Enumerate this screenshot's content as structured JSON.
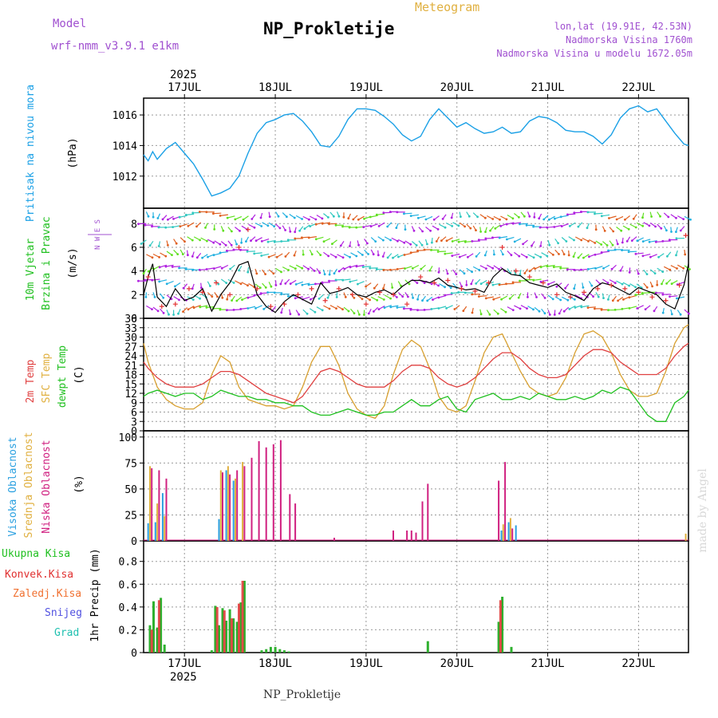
{
  "header": {
    "model_label": "Model",
    "model_name": "wrf-nmm_v3.9.1 e1km",
    "meteogram_label": "Meteogram",
    "station_title": "NP_Prokletije",
    "coords": "lon,lat (19.91E, 42.53N)",
    "altitude": "Nadmorska Visina 1760m",
    "model_altitude": "Nadmorska Visina u modelu 1672.05m",
    "year": "2025",
    "footer_station": "NP_Prokletije",
    "credit": "made by Angel"
  },
  "axis": {
    "days": [
      "17JUL",
      "18JUL",
      "19JUL",
      "20JUL",
      "21JUL",
      "22JUL"
    ],
    "x_range_days": [
      16.55,
      22.55
    ]
  },
  "colors": {
    "pressure": "#1aa0e6",
    "wind_speed": "#000000",
    "wind_gust_marker": "#e23030",
    "temp2m": "#e04040",
    "sfc": "#d8a030",
    "dewpt": "#20c020",
    "high_cloud": "#2aa0e0",
    "mid_cloud": "#e0b040",
    "low_cloud": "#d02080",
    "total_precip": "#2fb02f",
    "conv_precip": "#e03030",
    "ice_precip": "#f07030",
    "snow": "#5050e0",
    "hail": "#20c0b0",
    "model_text": "#a050d0",
    "grid": "#999999"
  },
  "chart_data": [
    {
      "type": "line",
      "id": "pressure",
      "ylabel": "Pritisak na nivou mora",
      "unit": "(hPa)",
      "yticks": [
        1012,
        1014,
        1016
      ],
      "ylim": [
        1009.9,
        1017.1
      ],
      "series": [
        {
          "x": [
            16.55,
            16.6,
            16.65,
            16.7,
            16.8,
            16.9,
            17.0,
            17.1,
            17.2,
            17.3,
            17.4,
            17.5,
            17.6,
            17.7,
            17.8,
            17.9,
            18.0,
            18.1,
            18.2,
            18.3,
            18.4,
            18.5,
            18.6,
            18.7,
            18.8,
            18.9,
            19.0,
            19.1,
            19.2,
            19.3,
            19.4,
            19.5,
            19.6,
            19.7,
            19.8,
            19.9,
            20.0,
            20.1,
            20.2,
            20.3,
            20.4,
            20.5,
            20.6,
            20.7,
            20.8,
            20.9,
            21.0,
            21.1,
            21.2,
            21.3,
            21.4,
            21.5,
            21.6,
            21.7,
            21.8,
            21.9,
            22.0,
            22.1,
            22.2,
            22.3,
            22.4,
            22.5,
            22.55
          ],
          "values": [
            1013.4,
            1013.0,
            1013.6,
            1013.1,
            1013.8,
            1014.2,
            1013.5,
            1012.8,
            1011.8,
            1010.7,
            1010.9,
            1011.2,
            1012.0,
            1013.5,
            1014.8,
            1015.5,
            1015.7,
            1016.0,
            1016.1,
            1015.6,
            1014.9,
            1014.0,
            1013.9,
            1014.6,
            1015.7,
            1016.4,
            1016.4,
            1016.3,
            1015.9,
            1015.4,
            1014.7,
            1014.3,
            1014.6,
            1015.7,
            1016.4,
            1015.8,
            1015.2,
            1015.5,
            1015.1,
            1014.8,
            1014.9,
            1015.2,
            1014.8,
            1014.9,
            1015.6,
            1015.9,
            1015.8,
            1015.5,
            1015.0,
            1014.9,
            1014.9,
            1014.6,
            1014.1,
            1014.7,
            1015.8,
            1016.4,
            1016.6,
            1016.2,
            1016.4,
            1015.6,
            1014.8,
            1014.1,
            1014.0
          ]
        }
      ]
    },
    {
      "type": "line",
      "id": "wind",
      "ylabel_1": "10m Vjetar",
      "ylabel_2": "Brzina i Pravac",
      "unit": "(m/s)",
      "compass": "N W E S",
      "yticks": [
        0,
        2,
        4,
        6,
        8
      ],
      "ylim": [
        0,
        9.3
      ],
      "series": [
        {
          "name": "speed",
          "x": [
            16.55,
            16.6,
            16.65,
            16.7,
            16.8,
            16.9,
            17.0,
            17.1,
            17.2,
            17.3,
            17.4,
            17.5,
            17.6,
            17.7,
            17.8,
            17.9,
            18.0,
            18.1,
            18.2,
            18.3,
            18.4,
            18.5,
            18.6,
            18.7,
            18.8,
            18.9,
            19.0,
            19.1,
            19.2,
            19.3,
            19.4,
            19.5,
            19.6,
            19.7,
            19.8,
            19.9,
            20.0,
            20.1,
            20.2,
            20.3,
            20.4,
            20.5,
            20.6,
            20.7,
            20.8,
            20.9,
            21.0,
            21.1,
            21.2,
            21.3,
            21.4,
            21.5,
            21.6,
            21.7,
            21.8,
            21.9,
            22.0,
            22.1,
            22.2,
            22.3,
            22.4,
            22.5,
            22.55
          ],
          "values": [
            2.0,
            3.5,
            4.6,
            1.8,
            1.0,
            2.5,
            1.5,
            1.8,
            2.5,
            0.6,
            2.0,
            3.0,
            4.5,
            4.8,
            2.0,
            1.0,
            0.5,
            1.4,
            2.0,
            1.6,
            1.2,
            3.0,
            2.1,
            2.3,
            2.6,
            2.0,
            1.8,
            2.2,
            2.4,
            2.0,
            2.7,
            3.2,
            3.2,
            3.0,
            3.4,
            2.8,
            2.6,
            2.4,
            2.5,
            2.2,
            3.5,
            4.2,
            3.7,
            3.6,
            3.0,
            2.8,
            2.6,
            2.9,
            2.2,
            1.9,
            1.5,
            2.5,
            3.0,
            2.8,
            2.4,
            2.0,
            2.6,
            2.3,
            2.0,
            1.2,
            0.8,
            2.8,
            4.6
          ]
        },
        {
          "name": "gust",
          "x": [
            16.6,
            16.75,
            16.9,
            17.05,
            17.2,
            17.35,
            17.5,
            17.6,
            17.7,
            17.8,
            17.95,
            18.1,
            18.25,
            18.4,
            18.55,
            18.7,
            18.85,
            19.0,
            19.15,
            19.3,
            19.45,
            19.6,
            19.75,
            19.9,
            20.05,
            20.2,
            20.35,
            20.5,
            20.65,
            20.8,
            20.95,
            21.1,
            21.25,
            21.4,
            21.55,
            21.7,
            21.85,
            22.0,
            22.15,
            22.3,
            22.45,
            22.52
          ],
          "values": [
            3.5,
            1.0,
            1.2,
            2.5,
            2.2,
            3.0,
            2.0,
            6.0,
            7.5,
            2.5,
            1.0,
            1.2,
            2.0,
            2.5,
            1.5,
            2.5,
            2.0,
            1.2,
            2.2,
            2.0,
            1.2,
            3.5,
            3.0,
            3.2,
            2.5,
            2.3,
            3.0,
            6.0,
            4.0,
            3.5,
            3.0,
            2.0,
            1.8,
            2.2,
            2.5,
            2.8,
            2.5,
            2.2,
            1.8,
            1.5,
            2.8,
            7.0
          ]
        }
      ]
    },
    {
      "type": "line",
      "id": "temperature",
      "ylabel_1": "2m Temp",
      "ylabel_2": "SFC Temp",
      "ylabel_3": "dewpt Temp",
      "unit": "(C)",
      "yticks": [
        0,
        3,
        6,
        9,
        12,
        15,
        18,
        21,
        24,
        27,
        30,
        33,
        36
      ],
      "ylim": [
        0,
        36
      ],
      "series": [
        {
          "name": "2m",
          "x": [
            16.55,
            16.6,
            16.7,
            16.8,
            16.9,
            17.0,
            17.1,
            17.2,
            17.3,
            17.4,
            17.5,
            17.6,
            17.7,
            17.8,
            17.9,
            18.0,
            18.1,
            18.2,
            18.3,
            18.4,
            18.5,
            18.6,
            18.7,
            18.8,
            18.9,
            19.0,
            19.1,
            19.2,
            19.3,
            19.4,
            19.5,
            19.6,
            19.7,
            19.8,
            19.9,
            20.0,
            20.1,
            20.2,
            20.3,
            20.4,
            20.5,
            20.6,
            20.7,
            20.8,
            20.9,
            21.0,
            21.1,
            21.2,
            21.3,
            21.4,
            21.5,
            21.6,
            21.7,
            21.8,
            21.9,
            22.0,
            22.1,
            22.2,
            22.3,
            22.4,
            22.5,
            22.55
          ],
          "values": [
            22,
            20,
            17,
            15,
            14,
            14,
            14,
            15,
            17,
            19,
            19,
            18,
            16,
            14,
            12,
            11,
            10,
            9,
            11,
            15,
            19,
            20,
            19,
            17,
            15,
            14,
            14,
            14,
            16,
            19,
            21,
            21,
            20,
            17,
            15,
            14,
            15,
            17,
            20,
            23,
            25,
            25,
            23,
            20,
            18,
            17,
            17,
            18,
            21,
            24,
            26,
            26,
            25,
            22,
            20,
            18,
            18,
            18,
            20,
            24,
            27,
            28
          ]
        },
        {
          "name": "sfc",
          "x": [
            16.55,
            16.6,
            16.7,
            16.8,
            16.9,
            17.0,
            17.1,
            17.2,
            17.3,
            17.4,
            17.5,
            17.6,
            17.7,
            17.8,
            17.9,
            18.0,
            18.1,
            18.2,
            18.3,
            18.4,
            18.5,
            18.6,
            18.7,
            18.8,
            18.9,
            19.0,
            19.1,
            19.2,
            19.3,
            19.4,
            19.5,
            19.6,
            19.7,
            19.8,
            19.9,
            20.0,
            20.1,
            20.2,
            20.3,
            20.4,
            20.5,
            20.6,
            20.7,
            20.8,
            20.9,
            21.0,
            21.1,
            21.2,
            21.3,
            21.4,
            21.5,
            21.6,
            21.7,
            21.8,
            21.9,
            22.0,
            22.1,
            22.2,
            22.3,
            22.4,
            22.5,
            22.55
          ],
          "values": [
            28,
            22,
            14,
            10,
            8,
            7,
            7,
            9,
            18,
            24,
            22,
            14,
            10,
            9,
            8,
            8,
            7,
            8,
            14,
            22,
            27,
            27,
            21,
            12,
            7,
            5,
            4,
            8,
            18,
            26,
            29,
            27,
            20,
            11,
            7,
            6,
            8,
            16,
            25,
            30,
            31,
            25,
            19,
            14,
            12,
            11,
            12,
            17,
            25,
            31,
            32,
            30,
            25,
            18,
            13,
            11,
            11,
            12,
            19,
            28,
            33,
            34
          ]
        },
        {
          "name": "dewpt",
          "x": [
            16.55,
            16.6,
            16.7,
            16.8,
            16.9,
            17.0,
            17.1,
            17.2,
            17.3,
            17.4,
            17.5,
            17.6,
            17.7,
            17.8,
            17.9,
            18.0,
            18.1,
            18.2,
            18.3,
            18.4,
            18.5,
            18.6,
            18.7,
            18.8,
            18.9,
            19.0,
            19.1,
            19.2,
            19.3,
            19.4,
            19.5,
            19.6,
            19.7,
            19.8,
            19.9,
            20.0,
            20.1,
            20.2,
            20.3,
            20.4,
            20.5,
            20.6,
            20.7,
            20.8,
            20.9,
            21.0,
            21.1,
            21.2,
            21.3,
            21.4,
            21.5,
            21.6,
            21.7,
            21.8,
            21.9,
            22.0,
            22.1,
            22.2,
            22.3,
            22.4,
            22.5,
            22.55
          ],
          "values": [
            11,
            12,
            13,
            12,
            11,
            12,
            12,
            10,
            11,
            13,
            12,
            11,
            11,
            10,
            10,
            9,
            9,
            8,
            8,
            6,
            5,
            5,
            6,
            7,
            6,
            5,
            5,
            6,
            6,
            8,
            10,
            8,
            8,
            10,
            11,
            7,
            6,
            10,
            11,
            12,
            10,
            10,
            11,
            10,
            12,
            11,
            10,
            10,
            11,
            10,
            11,
            13,
            12,
            14,
            13,
            9,
            5,
            3,
            3,
            9,
            11,
            13
          ]
        }
      ]
    },
    {
      "type": "bar",
      "id": "cloud",
      "ylabel_1": "Visoka Oblacnost",
      "ylabel_2": "Srednja Oblacnost",
      "ylabel_3": "Niska Oblacnost",
      "unit": "(%)",
      "yticks": [
        0,
        25,
        50,
        75,
        100
      ],
      "ylim": [
        0,
        106
      ],
      "series": [
        {
          "name": "high",
          "x": [
            16.6,
            16.68,
            16.76,
            17.38,
            17.46,
            17.54,
            20.49,
            20.57,
            20.65
          ],
          "values": [
            17,
            18,
            46,
            21,
            68,
            58,
            10,
            18,
            15
          ]
        },
        {
          "name": "mid",
          "x": [
            16.62,
            16.7,
            16.78,
            17.4,
            17.48,
            17.56,
            17.64,
            20.51,
            20.59,
            22.52
          ],
          "values": [
            72,
            36,
            24,
            68,
            72,
            60,
            76,
            16,
            22,
            7
          ]
        },
        {
          "name": "low",
          "x": [
            16.64,
            16.72,
            16.8,
            17.42,
            17.5,
            17.58,
            17.66,
            17.74,
            17.82,
            17.9,
            17.98,
            18.06,
            18.16,
            18.22,
            18.65,
            19.3,
            19.45,
            19.5,
            19.55,
            19.62,
            19.68,
            20.46,
            20.53,
            20.61
          ],
          "values": [
            70,
            68,
            60,
            66,
            64,
            68,
            72,
            80,
            96,
            90,
            93,
            97,
            45,
            36,
            3,
            10,
            10,
            10,
            8,
            38,
            55,
            58,
            76,
            12
          ]
        }
      ]
    },
    {
      "type": "bar",
      "id": "precip",
      "ylabel_1": "Ukupna Kisa",
      "ylabel_2": "Konvek.Kisa",
      "ylabel_3": "Zaledj.Kisa",
      "ylabel_4": "Snijeg",
      "ylabel_5": "Grad",
      "unit": "1hr Precip (mm)",
      "yticks": [
        0,
        0.2,
        0.4,
        0.6,
        0.8
      ],
      "ylim": [
        0,
        0.98
      ],
      "series": [
        {
          "name": "total",
          "x": [
            16.62,
            16.66,
            16.7,
            16.74,
            16.78,
            17.3,
            17.34,
            17.38,
            17.42,
            17.46,
            17.5,
            17.54,
            17.58,
            17.62,
            17.66,
            17.85,
            17.9,
            17.95,
            18.0,
            18.05,
            18.1,
            18.15,
            19.68,
            20.46,
            20.5,
            20.6
          ],
          "values": [
            0.24,
            0.45,
            0.22,
            0.48,
            0.07,
            0.02,
            0.41,
            0.24,
            0.39,
            0.28,
            0.38,
            0.3,
            0.27,
            0.44,
            0.63,
            0.02,
            0.03,
            0.05,
            0.05,
            0.03,
            0.02,
            0.01,
            0.1,
            0.27,
            0.49,
            0.05
          ]
        },
        {
          "name": "conv",
          "x": [
            16.64,
            16.72,
            17.36,
            17.44,
            17.52,
            17.6,
            17.64,
            20.48
          ],
          "values": [
            0.2,
            0.46,
            0.4,
            0.37,
            0.3,
            0.43,
            0.63,
            0.46
          ]
        }
      ]
    }
  ]
}
